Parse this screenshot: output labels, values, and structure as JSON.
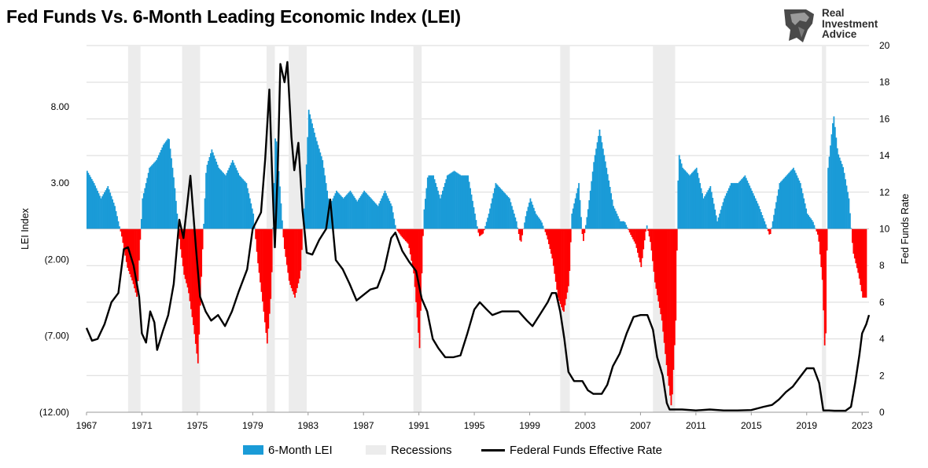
{
  "header": {
    "title": "Fed Funds Vs. 6-Month Leading Economic Index (LEI)"
  },
  "brand": {
    "line1": "Real",
    "line2": "Investment",
    "line3": "Advice",
    "logo_icon": "lion-head-icon"
  },
  "colors": {
    "lei_positive": "#1a9bd7",
    "lei_negative": "#ff0000",
    "recession": "#ececec",
    "fed_funds": "#000000",
    "grid": "#d9d9d9"
  },
  "chart_data": {
    "type": "bar+line",
    "title": "Fed Funds Vs. 6-Month Leading Economic Index (LEI)",
    "x_range": [
      1967.0,
      2023.5
    ],
    "x_ticks": [
      "1967",
      "1971",
      "1975",
      "1979",
      "1983",
      "1987",
      "1991",
      "1995",
      "1999",
      "2003",
      "2007",
      "2011",
      "2015",
      "2019",
      "2023"
    ],
    "left_axis": {
      "label": "LEI Index",
      "range": [
        -12,
        12
      ],
      "ticks": [
        {
          "value": 8,
          "label": "8.00"
        },
        {
          "value": 3,
          "label": "3.00"
        },
        {
          "value": -2,
          "label": "(2.00)"
        },
        {
          "value": -7,
          "label": "(7.00)"
        },
        {
          "value": -12,
          "label": "(12.00)"
        }
      ]
    },
    "right_axis": {
      "label": "Fed Funds Rate",
      "range": [
        0,
        20
      ],
      "ticks": [
        0,
        2,
        4,
        6,
        8,
        10,
        12,
        14,
        16,
        18,
        20
      ]
    },
    "grid": true,
    "legend": {
      "position": "bottom",
      "entries": [
        "6-Month LEI",
        "Recessions",
        "Federal Funds Effective Rate"
      ]
    },
    "recessions": [
      [
        1970.0,
        1970.9
      ],
      [
        1973.9,
        1975.2
      ],
      [
        1980.0,
        1980.6
      ],
      [
        1981.6,
        1982.9
      ],
      [
        1990.6,
        1991.2
      ],
      [
        2001.2,
        2001.9
      ],
      [
        2007.9,
        2009.5
      ],
      [
        2020.1,
        2020.4
      ]
    ],
    "series": [
      {
        "name": "6-Month LEI",
        "axis": "left",
        "points": [
          [
            1967.0,
            3.8
          ],
          [
            1967.5,
            3.0
          ],
          [
            1968.0,
            2.0
          ],
          [
            1968.5,
            2.8
          ],
          [
            1969.0,
            1.5
          ],
          [
            1969.5,
            -0.5
          ],
          [
            1969.9,
            -2.5
          ],
          [
            1970.3,
            -3.5
          ],
          [
            1970.6,
            -4.5
          ],
          [
            1971.0,
            2.0
          ],
          [
            1971.5,
            4.0
          ],
          [
            1972.0,
            4.5
          ],
          [
            1972.5,
            5.5
          ],
          [
            1972.9,
            6.0
          ],
          [
            1973.3,
            3.0
          ],
          [
            1973.7,
            -1.0
          ],
          [
            1974.0,
            -3.0
          ],
          [
            1974.3,
            -4.0
          ],
          [
            1974.7,
            -6.5
          ],
          [
            1975.0,
            -8.8
          ],
          [
            1975.3,
            -2.0
          ],
          [
            1975.6,
            4.0
          ],
          [
            1976.0,
            5.2
          ],
          [
            1976.5,
            4.0
          ],
          [
            1977.0,
            3.5
          ],
          [
            1977.5,
            4.5
          ],
          [
            1978.0,
            3.5
          ],
          [
            1978.5,
            3.0
          ],
          [
            1979.0,
            1.0
          ],
          [
            1979.3,
            -2.0
          ],
          [
            1979.7,
            -5.0
          ],
          [
            1980.0,
            -7.5
          ],
          [
            1980.3,
            -4.0
          ],
          [
            1980.6,
            6.5
          ],
          [
            1980.9,
            3.0
          ],
          [
            1981.2,
            -1.0
          ],
          [
            1981.6,
            -3.5
          ],
          [
            1982.0,
            -4.5
          ],
          [
            1982.4,
            -3.0
          ],
          [
            1982.8,
            3.5
          ],
          [
            1983.0,
            7.8
          ],
          [
            1983.5,
            6.0
          ],
          [
            1984.0,
            4.5
          ],
          [
            1984.5,
            1.5
          ],
          [
            1985.0,
            2.5
          ],
          [
            1985.5,
            2.0
          ],
          [
            1986.0,
            2.5
          ],
          [
            1986.5,
            1.8
          ],
          [
            1987.0,
            2.5
          ],
          [
            1987.5,
            2.0
          ],
          [
            1988.0,
            1.5
          ],
          [
            1988.5,
            2.5
          ],
          [
            1989.0,
            1.5
          ],
          [
            1989.3,
            0.0
          ],
          [
            1989.7,
            -0.5
          ],
          [
            1990.2,
            -1.0
          ],
          [
            1990.6,
            -3.0
          ],
          [
            1991.0,
            -7.8
          ],
          [
            1991.3,
            1.0
          ],
          [
            1991.6,
            3.5
          ],
          [
            1992.0,
            3.5
          ],
          [
            1992.5,
            2.0
          ],
          [
            1993.0,
            3.5
          ],
          [
            1993.5,
            3.8
          ],
          [
            1994.0,
            3.5
          ],
          [
            1994.5,
            3.5
          ],
          [
            1995.0,
            1.0
          ],
          [
            1995.3,
            -0.5
          ],
          [
            1995.6,
            -0.3
          ],
          [
            1996.0,
            1.0
          ],
          [
            1996.5,
            3.0
          ],
          [
            1997.0,
            2.5
          ],
          [
            1997.5,
            2.0
          ],
          [
            1998.0,
            0.5
          ],
          [
            1998.3,
            -1.0
          ],
          [
            1998.7,
            1.0
          ],
          [
            1999.0,
            2.0
          ],
          [
            1999.4,
            1.0
          ],
          [
            1999.8,
            0.5
          ],
          [
            2000.2,
            -0.5
          ],
          [
            2000.6,
            -2.0
          ],
          [
            2001.0,
            -4.5
          ],
          [
            2001.4,
            -5.5
          ],
          [
            2001.8,
            -3.5
          ],
          [
            2002.0,
            1.0
          ],
          [
            2002.5,
            3.0
          ],
          [
            2002.8,
            -1.0
          ],
          [
            2003.2,
            1.5
          ],
          [
            2003.6,
            4.5
          ],
          [
            2004.0,
            6.5
          ],
          [
            2004.5,
            4.0
          ],
          [
            2005.0,
            1.5
          ],
          [
            2005.5,
            0.5
          ],
          [
            2005.8,
            0.5
          ],
          [
            2006.2,
            -0.3
          ],
          [
            2006.6,
            -1.0
          ],
          [
            2007.0,
            -2.5
          ],
          [
            2007.4,
            0.3
          ],
          [
            2007.7,
            -1.0
          ],
          [
            2008.0,
            -3.5
          ],
          [
            2008.5,
            -6.0
          ],
          [
            2008.9,
            -9.5
          ],
          [
            2009.2,
            -11.8
          ],
          [
            2009.5,
            -6.0
          ],
          [
            2009.7,
            5.0
          ],
          [
            2010.0,
            4.0
          ],
          [
            2010.5,
            3.5
          ],
          [
            2011.0,
            4.0
          ],
          [
            2011.5,
            2.0
          ],
          [
            2012.0,
            2.8
          ],
          [
            2012.5,
            0.5
          ],
          [
            2013.0,
            2.0
          ],
          [
            2013.5,
            3.0
          ],
          [
            2014.0,
            3.0
          ],
          [
            2014.5,
            3.5
          ],
          [
            2015.0,
            2.5
          ],
          [
            2015.5,
            1.5
          ],
          [
            2016.0,
            0.3
          ],
          [
            2016.3,
            -0.5
          ],
          [
            2016.7,
            1.5
          ],
          [
            2017.0,
            3.0
          ],
          [
            2017.5,
            3.5
          ],
          [
            2018.0,
            4.0
          ],
          [
            2018.5,
            3.0
          ],
          [
            2019.0,
            1.0
          ],
          [
            2019.4,
            0.5
          ],
          [
            2019.8,
            -0.5
          ],
          [
            2020.1,
            -3.5
          ],
          [
            2020.3,
            -9.0
          ],
          [
            2020.5,
            4.0
          ],
          [
            2020.9,
            7.5
          ],
          [
            2021.2,
            5.0
          ],
          [
            2021.6,
            4.0
          ],
          [
            2022.0,
            2.0
          ],
          [
            2022.3,
            -1.5
          ],
          [
            2022.7,
            -3.0
          ],
          [
            2023.0,
            -4.5
          ],
          [
            2023.3,
            -4.5
          ]
        ]
      },
      {
        "name": "Federal Funds Effective Rate",
        "axis": "right",
        "points": [
          [
            1967.0,
            4.6
          ],
          [
            1967.4,
            3.9
          ],
          [
            1967.8,
            4.0
          ],
          [
            1968.3,
            4.8
          ],
          [
            1968.8,
            6.0
          ],
          [
            1969.3,
            6.5
          ],
          [
            1969.7,
            8.9
          ],
          [
            1970.0,
            9.0
          ],
          [
            1970.4,
            8.0
          ],
          [
            1970.8,
            6.3
          ],
          [
            1971.0,
            4.3
          ],
          [
            1971.3,
            3.8
          ],
          [
            1971.6,
            5.5
          ],
          [
            1971.9,
            4.9
          ],
          [
            1972.1,
            3.4
          ],
          [
            1972.5,
            4.4
          ],
          [
            1972.9,
            5.3
          ],
          [
            1973.3,
            7.0
          ],
          [
            1973.7,
            10.5
          ],
          [
            1974.0,
            9.5
          ],
          [
            1974.5,
            12.9
          ],
          [
            1974.9,
            9.0
          ],
          [
            1975.2,
            6.3
          ],
          [
            1975.6,
            5.5
          ],
          [
            1976.0,
            5.0
          ],
          [
            1976.5,
            5.3
          ],
          [
            1977.0,
            4.7
          ],
          [
            1977.5,
            5.5
          ],
          [
            1978.0,
            6.6
          ],
          [
            1978.6,
            7.8
          ],
          [
            1979.0,
            10.0
          ],
          [
            1979.6,
            10.9
          ],
          [
            1979.9,
            13.8
          ],
          [
            1980.2,
            17.6
          ],
          [
            1980.4,
            13.0
          ],
          [
            1980.6,
            9.0
          ],
          [
            1980.8,
            13.0
          ],
          [
            1981.0,
            19.0
          ],
          [
            1981.3,
            18.0
          ],
          [
            1981.5,
            19.1
          ],
          [
            1981.8,
            15.0
          ],
          [
            1982.0,
            13.2
          ],
          [
            1982.3,
            14.7
          ],
          [
            1982.6,
            11.0
          ],
          [
            1982.9,
            8.7
          ],
          [
            1983.3,
            8.6
          ],
          [
            1983.8,
            9.4
          ],
          [
            1984.3,
            10.0
          ],
          [
            1984.6,
            11.6
          ],
          [
            1985.0,
            8.3
          ],
          [
            1985.5,
            7.8
          ],
          [
            1986.0,
            7.0
          ],
          [
            1986.5,
            6.1
          ],
          [
            1987.0,
            6.4
          ],
          [
            1987.5,
            6.7
          ],
          [
            1988.0,
            6.8
          ],
          [
            1988.5,
            7.8
          ],
          [
            1989.0,
            9.5
          ],
          [
            1989.3,
            9.8
          ],
          [
            1989.8,
            8.8
          ],
          [
            1990.3,
            8.2
          ],
          [
            1990.8,
            7.7
          ],
          [
            1991.2,
            6.2
          ],
          [
            1991.6,
            5.5
          ],
          [
            1992.0,
            4.0
          ],
          [
            1992.4,
            3.5
          ],
          [
            1992.9,
            3.0
          ],
          [
            1993.5,
            3.0
          ],
          [
            1994.0,
            3.1
          ],
          [
            1994.5,
            4.3
          ],
          [
            1995.0,
            5.6
          ],
          [
            1995.4,
            6.0
          ],
          [
            1995.9,
            5.6
          ],
          [
            1996.3,
            5.3
          ],
          [
            1997.0,
            5.5
          ],
          [
            1997.6,
            5.5
          ],
          [
            1998.2,
            5.5
          ],
          [
            1998.8,
            5.0
          ],
          [
            1999.2,
            4.7
          ],
          [
            1999.8,
            5.4
          ],
          [
            2000.3,
            6.0
          ],
          [
            2000.6,
            6.5
          ],
          [
            2000.9,
            6.5
          ],
          [
            2001.2,
            5.5
          ],
          [
            2001.5,
            4.0
          ],
          [
            2001.8,
            2.2
          ],
          [
            2002.2,
            1.7
          ],
          [
            2002.8,
            1.7
          ],
          [
            2003.2,
            1.2
          ],
          [
            2003.6,
            1.0
          ],
          [
            2004.2,
            1.0
          ],
          [
            2004.6,
            1.5
          ],
          [
            2005.0,
            2.5
          ],
          [
            2005.5,
            3.2
          ],
          [
            2006.0,
            4.3
          ],
          [
            2006.5,
            5.2
          ],
          [
            2007.0,
            5.3
          ],
          [
            2007.5,
            5.3
          ],
          [
            2007.9,
            4.5
          ],
          [
            2008.2,
            3.0
          ],
          [
            2008.6,
            2.0
          ],
          [
            2008.9,
            0.5
          ],
          [
            2009.1,
            0.15
          ],
          [
            2010.0,
            0.15
          ],
          [
            2011.0,
            0.1
          ],
          [
            2012.0,
            0.15
          ],
          [
            2013.0,
            0.1
          ],
          [
            2014.0,
            0.1
          ],
          [
            2015.0,
            0.12
          ],
          [
            2015.9,
            0.3
          ],
          [
            2016.5,
            0.4
          ],
          [
            2017.0,
            0.7
          ],
          [
            2017.5,
            1.1
          ],
          [
            2018.0,
            1.4
          ],
          [
            2018.5,
            1.9
          ],
          [
            2019.0,
            2.4
          ],
          [
            2019.5,
            2.4
          ],
          [
            2019.9,
            1.6
          ],
          [
            2020.2,
            0.1
          ],
          [
            2020.6,
            0.1
          ],
          [
            2021.0,
            0.08
          ],
          [
            2021.8,
            0.08
          ],
          [
            2022.2,
            0.3
          ],
          [
            2022.5,
            1.6
          ],
          [
            2022.8,
            3.1
          ],
          [
            2023.0,
            4.3
          ],
          [
            2023.3,
            4.8
          ],
          [
            2023.5,
            5.3
          ]
        ]
      }
    ]
  }
}
